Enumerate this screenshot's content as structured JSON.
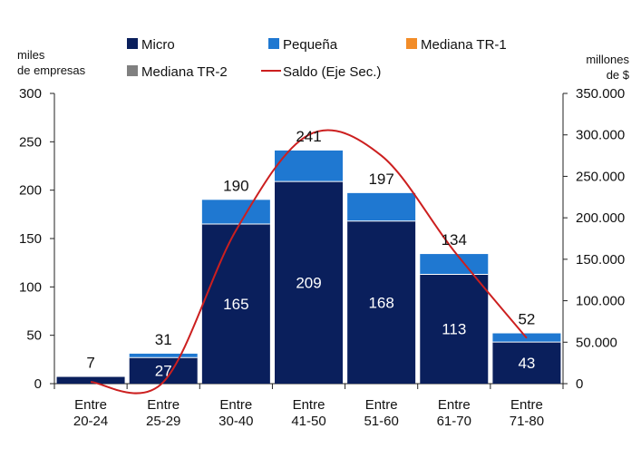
{
  "chart_data": {
    "type": "bar",
    "stacked": true,
    "categories": [
      [
        "Entre",
        "20-24"
      ],
      [
        "Entre",
        "25-29"
      ],
      [
        "Entre",
        "30-40"
      ],
      [
        "Entre",
        "41-50"
      ],
      [
        "Entre",
        "51-60"
      ],
      [
        "Entre",
        "61-70"
      ],
      [
        "Entre",
        "71-80"
      ]
    ],
    "series": [
      {
        "name": "Micro",
        "color": "#0a1f5c",
        "values": [
          7,
          27,
          165,
          209,
          168,
          113,
          43
        ]
      },
      {
        "name": "Pequeña",
        "color": "#1f78d1",
        "values": [
          0,
          4,
          25,
          32,
          29,
          21,
          9
        ]
      },
      {
        "name": "Mediana TR-1",
        "color": "#f28c28",
        "values": [
          0,
          0,
          0,
          0,
          0,
          0,
          0
        ]
      },
      {
        "name": "Mediana TR-2",
        "color": "#808080",
        "values": [
          0,
          0,
          0,
          0,
          0,
          0,
          0
        ]
      }
    ],
    "totals": [
      7,
      31,
      190,
      241,
      197,
      134,
      52
    ],
    "inner_labels": [
      "",
      "27",
      "165",
      "209",
      "168",
      "113",
      "43"
    ],
    "line_series": {
      "name": "Saldo (Eje Sec.)",
      "color": "#cc1f1f",
      "axis": "secondary",
      "values": [
        2000,
        2000,
        185000,
        300000,
        275000,
        160000,
        55000
      ]
    },
    "y_left": {
      "title": [
        "miles",
        "de empresas"
      ],
      "ylim": [
        0,
        300
      ],
      "ticks": [
        0,
        50,
        100,
        150,
        200,
        250,
        300
      ],
      "tick_labels": [
        "0",
        "50",
        "100",
        "150",
        "200",
        "250",
        "300"
      ]
    },
    "y_right": {
      "title": [
        "millones",
        "de $"
      ],
      "ylim": [
        0,
        350000
      ],
      "ticks": [
        0,
        50000,
        100000,
        150000,
        200000,
        250000,
        300000,
        350000
      ],
      "tick_labels": [
        "0",
        "50.000",
        "100.000",
        "150.000",
        "200.000",
        "250.000",
        "300.000",
        "350.000"
      ]
    },
    "legend": {
      "placement": "top",
      "entries": [
        {
          "label": "Micro",
          "color": "#0a1f5c",
          "kind": "box"
        },
        {
          "label": "Pequeña",
          "color": "#1f78d1",
          "kind": "box"
        },
        {
          "label": "Mediana TR-1",
          "color": "#f28c28",
          "kind": "box"
        },
        {
          "label": "Mediana TR-2",
          "color": "#808080",
          "kind": "box"
        },
        {
          "label": "Saldo (Eje Sec.)",
          "color": "#cc1f1f",
          "kind": "line"
        }
      ]
    },
    "grid": false
  }
}
